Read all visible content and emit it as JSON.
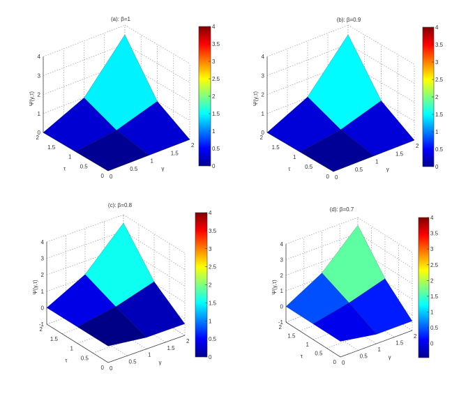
{
  "chart_data": [
    {
      "type": "surface",
      "title": "(a):  β=1",
      "xlabel": "γ",
      "ylabel": "τ",
      "zlabel": "Ψ(γ,τ)",
      "x": [
        0,
        1,
        2
      ],
      "y": [
        0,
        1,
        2
      ],
      "z": [
        [
          0,
          0,
          0
        ],
        [
          0,
          0.3,
          1.0
        ],
        [
          0,
          1.0,
          3.5
        ]
      ],
      "xticks": [
        "0",
        "0.5",
        "1",
        "1.5",
        "2"
      ],
      "yticks": [
        "0",
        "0.5",
        "1",
        "1.5",
        "2"
      ],
      "zticks": [
        "0",
        "1",
        "2",
        "3",
        "4"
      ],
      "zlim": [
        0,
        4
      ],
      "colorbar": {
        "range": [
          0,
          4
        ],
        "ticks": [
          "0",
          "0.5",
          "1",
          "1.5",
          "2",
          "2.5",
          "3",
          "3.5",
          "4"
        ]
      }
    },
    {
      "type": "surface",
      "title": "(b): β=0.9",
      "xlabel": "γ",
      "ylabel": "τ",
      "zlabel": "Ψ(γ,τ)",
      "x": [
        0,
        1,
        2
      ],
      "y": [
        0,
        1,
        2
      ],
      "z": [
        [
          0,
          0,
          0
        ],
        [
          0,
          0.35,
          1.05
        ],
        [
          0,
          1.05,
          3.5
        ]
      ],
      "xticks": [
        "0",
        "0.5",
        "1",
        "1.5",
        "2"
      ],
      "yticks": [
        "0",
        "0.5",
        "1",
        "1.5",
        "2"
      ],
      "zticks": [
        "0",
        "1",
        "2",
        "3",
        "4"
      ],
      "zlim": [
        0,
        4
      ],
      "colorbar": {
        "range": [
          0,
          4
        ],
        "ticks": [
          "0",
          "0.5",
          "1",
          "1.5",
          "2",
          "2.5",
          "3",
          "3.5",
          "4"
        ]
      }
    },
    {
      "type": "surface",
      "title": "(c): β=0.8",
      "xlabel": "γ",
      "ylabel": "τ",
      "zlabel": "Ψ(γ,τ)",
      "x": [
        0,
        1,
        2
      ],
      "y": [
        0,
        1,
        2
      ],
      "z": [
        [
          0,
          -0.3,
          -0.3
        ],
        [
          0,
          0.4,
          1.1
        ],
        [
          0,
          1.2,
          3.5
        ]
      ],
      "xticks": [
        "0",
        "0.5",
        "1",
        "1.5",
        "2"
      ],
      "yticks": [
        "0",
        "0.5",
        "1",
        "1.5",
        "2"
      ],
      "zticks": [
        "-1",
        "0",
        "1",
        "2",
        "3",
        "4"
      ],
      "zlim": [
        -1,
        4
      ],
      "colorbar": {
        "range": [
          0,
          4
        ],
        "ticks": [
          "0",
          "0.5",
          "1",
          "1.5",
          "2",
          "2.5",
          "3",
          "3.5",
          "4"
        ]
      }
    },
    {
      "type": "surface",
      "title": "(d): β=0.7",
      "xlabel": "γ",
      "ylabel": "τ",
      "zlabel": "Ψ(γ,τ)",
      "x": [
        0,
        1,
        2
      ],
      "y": [
        0,
        1,
        2
      ],
      "z": [
        [
          0,
          -0.4,
          -0.4
        ],
        [
          0,
          0.5,
          1.2
        ],
        [
          0,
          1.3,
          3.5
        ]
      ],
      "xticks": [
        "0",
        "0.5",
        "1",
        "1.5",
        "2"
      ],
      "yticks": [
        "0",
        "0.5",
        "1",
        "1.5",
        "2"
      ],
      "zticks": [
        "-1",
        "0",
        "1",
        "2",
        "3",
        "4"
      ],
      "zlim": [
        -1,
        4
      ],
      "colorbar": {
        "range": [
          -0.45,
          4
        ],
        "ticks": [
          "0",
          "0.5",
          "1",
          "1.5",
          "2",
          "2.5",
          "3",
          "3.5",
          "4"
        ]
      }
    }
  ]
}
